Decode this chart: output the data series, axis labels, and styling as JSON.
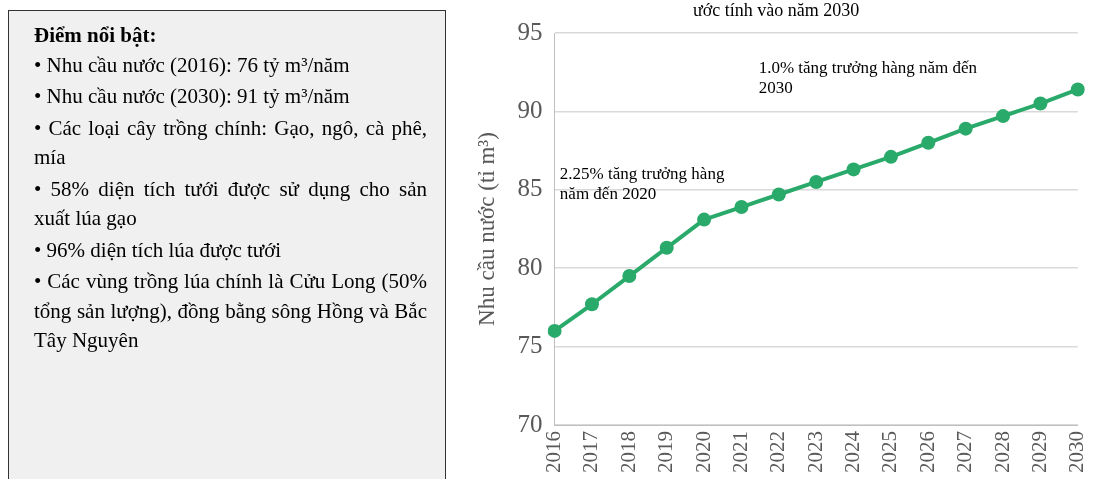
{
  "chart_data": [
    {
      "type": "other",
      "title": "Điểm nổi bật:",
      "annotations": [
        "• Nhu cầu nước (2016): 76 tỷ m³/năm",
        "• Nhu cầu nước (2030): 91 tỷ m³/năm",
        "• Các loại cây trồng chính: Gạo, ngô, cà phê, mía",
        "• 58% diện tích tưới được sử dụng cho sản xuất lúa gạo",
        "• 96% diện tích lúa được tưới",
        "• Các vùng trồng lúa chính là Cửu Long (50% tổng sản lượng), đồng bằng sông Hồng và Bắc Tây Nguyên"
      ]
    },
    {
      "type": "line",
      "title": "ước tính vào năm 2030",
      "ylabel": "Nhu cầu nước (tỉ m³)",
      "categories": [
        "2016",
        "2017",
        "2018",
        "2019",
        "2020",
        "2021",
        "2022",
        "2023",
        "2024",
        "2025",
        "2026",
        "2027",
        "2028",
        "2029",
        "2030"
      ],
      "values": [
        76.0,
        77.7,
        79.5,
        81.3,
        83.1,
        83.9,
        84.7,
        85.5,
        86.3,
        87.1,
        88.0,
        88.9,
        89.7,
        90.5,
        91.4
      ],
      "color": "#2aaa6a",
      "ylim": [
        70,
        95
      ],
      "yticks": [
        70,
        75,
        80,
        85,
        90,
        95
      ],
      "grid": "y",
      "marker": "circle",
      "legend": false,
      "annotations": [
        "2.25% tăng trưởng hàng năm đến 2020",
        "1.0% tăng trưởng hàng năm đến 2030"
      ]
    }
  ]
}
